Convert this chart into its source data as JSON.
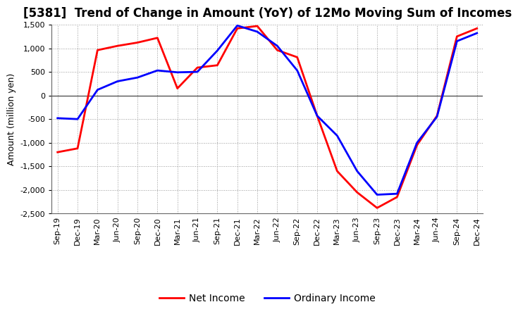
{
  "title": "[5381]  Trend of Change in Amount (YoY) of 12Mo Moving Sum of Incomes",
  "ylabel": "Amount (million yen)",
  "xlabels": [
    "Sep-19",
    "Dec-19",
    "Mar-20",
    "Jun-20",
    "Sep-20",
    "Dec-20",
    "Mar-21",
    "Jun-21",
    "Sep-21",
    "Dec-21",
    "Mar-22",
    "Jun-22",
    "Sep-22",
    "Dec-22",
    "Mar-23",
    "Jun-23",
    "Sep-23",
    "Dec-23",
    "Mar-24",
    "Jun-24",
    "Sep-24",
    "Dec-24"
  ],
  "ordinary_income": [
    -480,
    -500,
    120,
    300,
    380,
    530,
    490,
    500,
    950,
    1480,
    1350,
    1050,
    530,
    -430,
    -850,
    -1600,
    -2100,
    -2080,
    -1000,
    -450,
    1150,
    1320
  ],
  "net_income": [
    -1200,
    -1120,
    960,
    1050,
    1120,
    1220,
    150,
    590,
    640,
    1420,
    1470,
    960,
    810,
    -430,
    -1600,
    -2050,
    -2380,
    -2150,
    -1050,
    -430,
    1250,
    1420
  ],
  "ordinary_income_color": "#0000ff",
  "net_income_color": "#ff0000",
  "ylim": [
    -2500,
    1500
  ],
  "yticks": [
    -2500,
    -2000,
    -1500,
    -1000,
    -500,
    0,
    500,
    1000,
    1500
  ],
  "background_color": "#ffffff",
  "grid_color": "#999999",
  "zero_line_color": "#555555",
  "legend_ordinary": "Ordinary Income",
  "legend_net": "Net Income",
  "title_fontsize": 12,
  "axis_fontsize": 9,
  "tick_fontsize": 8,
  "line_width": 2.0
}
